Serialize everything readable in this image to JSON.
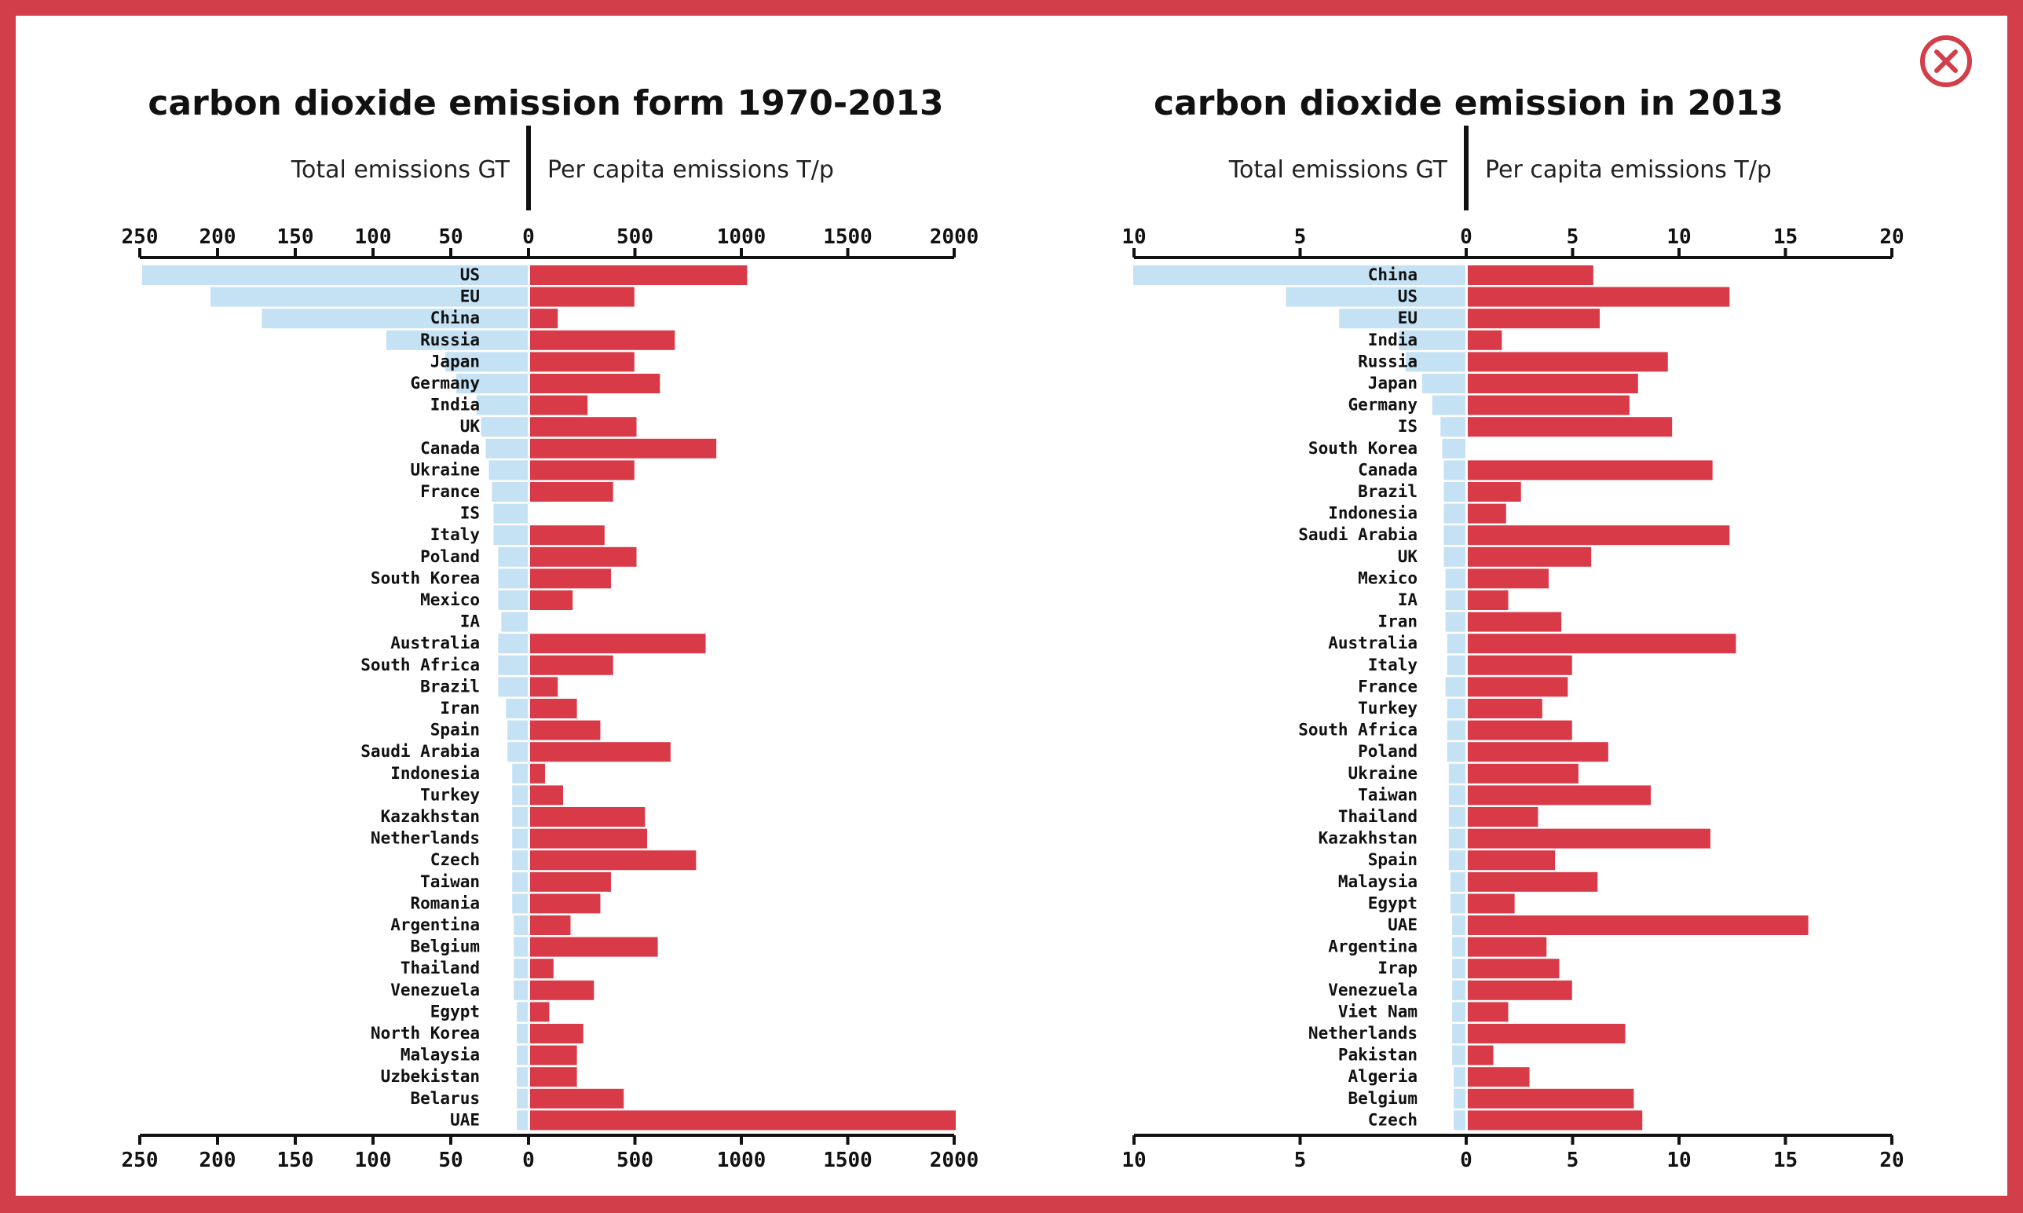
{
  "colors": {
    "frame": "#d23f4a",
    "total_bar": "#c5e1f4",
    "percap_bar": "#d93a48",
    "axis": "#111111",
    "close": "#d23f4a"
  },
  "close_button": {
    "icon": "close-circle-icon"
  },
  "chart_data": [
    {
      "type": "bar",
      "title": "carbon dioxide emission form 1970-2013",
      "left_label": "Total emissions GT",
      "right_label": "Per capita emissions T/p",
      "left_axis": {
        "max": 250,
        "ticks": [
          "250",
          "200",
          "150",
          "100",
          "50",
          "0"
        ]
      },
      "right_axis": {
        "max": 2000,
        "ticks": [
          "0",
          "500",
          "1000",
          "1500",
          "2000"
        ]
      },
      "categories": [
        "US",
        "EU",
        "China",
        "Russia",
        "Japan",
        "Germany",
        "India",
        "UK",
        "Canada",
        "Ukraine",
        "France",
        "IS",
        "Italy",
        "Poland",
        "South Korea",
        "Mexico",
        "IA",
        "Australia",
        "South Africa",
        "Brazil",
        "Iran",
        "Spain",
        "Saudi Arabia",
        "Indonesia",
        "Turkey",
        "Kazakhstan",
        "Netherlands",
        "Czech",
        "Taiwan",
        "Romania",
        "Argentina",
        "Belgium",
        "Thailand",
        "Venezuela",
        "Egypt",
        "North Korea",
        "Malaysia",
        "Uzbekistan",
        "Belarus",
        "UAE"
      ],
      "series": [
        {
          "name": "Total emissions GT",
          "values": [
            248,
            204,
            171,
            91,
            53,
            46,
            33,
            30,
            27,
            25,
            23,
            22,
            22,
            19,
            19,
            19,
            17,
            19,
            19,
            19,
            14,
            13,
            13,
            10,
            10,
            10,
            10,
            10,
            10,
            10,
            9,
            9,
            9,
            9,
            7,
            7,
            7,
            7,
            7,
            7
          ]
        },
        {
          "name": "Per capita emissions T/p",
          "values": [
            1020,
            490,
            130,
            680,
            490,
            610,
            270,
            500,
            875,
            490,
            390,
            0,
            350,
            500,
            380,
            200,
            0,
            825,
            390,
            130,
            220,
            330,
            660,
            70,
            155,
            540,
            550,
            780,
            380,
            330,
            190,
            600,
            110,
            300,
            90,
            250,
            220,
            220,
            440,
            2000
          ]
        }
      ]
    },
    {
      "type": "bar",
      "title": "carbon dioxide emission in 2013",
      "left_label": "Total emissions GT",
      "right_label": "Per capita emissions T/p",
      "left_axis": {
        "max": 10,
        "ticks": [
          "10",
          "5",
          "0"
        ]
      },
      "right_axis": {
        "max": 20,
        "ticks": [
          "0",
          "5",
          "10",
          "15",
          "20"
        ]
      },
      "categories": [
        "China",
        "US",
        "EU",
        "India",
        "Russia",
        "Japan",
        "Germany",
        "IS",
        "South Korea",
        "Canada",
        "Brazil",
        "Indonesia",
        "Saudi Arabia",
        "UK",
        "Mexico",
        "IA",
        "Iran",
        "Australia",
        "Italy",
        "France",
        "Turkey",
        "South Africa",
        "Poland",
        "Ukraine",
        "Taiwan",
        "Thailand",
        "Kazakhstan",
        "Spain",
        "Malaysia",
        "Egypt",
        "UAE",
        "Argentina",
        "Irap",
        "Venezuela",
        "Viet Nam",
        "Netherlands",
        "Pakistan",
        "Algeria",
        "Belgium",
        "Czech"
      ],
      "series": [
        {
          "name": "Total emissions GT",
          "values": [
            10,
            5.4,
            3.8,
            2.0,
            1.8,
            1.3,
            1.0,
            0.75,
            0.7,
            0.65,
            0.65,
            0.65,
            0.65,
            0.65,
            0.6,
            0.6,
            0.6,
            0.55,
            0.55,
            0.6,
            0.55,
            0.55,
            0.55,
            0.5,
            0.5,
            0.5,
            0.5,
            0.5,
            0.45,
            0.45,
            0.4,
            0.4,
            0.4,
            0.4,
            0.4,
            0.4,
            0.4,
            0.35,
            0.35,
            0.35
          ]
        },
        {
          "name": "Per capita emissions T/p",
          "values": [
            5.9,
            12.3,
            6.2,
            1.6,
            9.4,
            8.0,
            7.6,
            9.6,
            0,
            11.5,
            2.5,
            1.8,
            12.3,
            5.8,
            3.8,
            1.9,
            4.4,
            12.6,
            4.9,
            4.7,
            3.5,
            4.9,
            6.6,
            5.2,
            8.6,
            3.3,
            11.4,
            4.1,
            6.1,
            2.2,
            16.0,
            3.7,
            4.3,
            4.9,
            1.9,
            7.4,
            1.2,
            2.9,
            7.8,
            8.2
          ]
        }
      ]
    }
  ]
}
